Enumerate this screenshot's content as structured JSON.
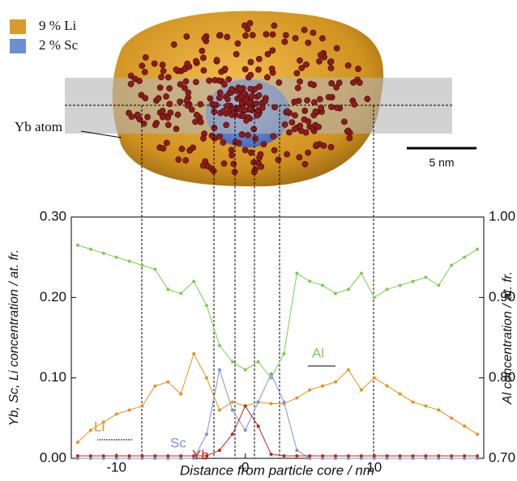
{
  "particle_image": {
    "legend": [
      {
        "label": "9 % Li",
        "color": "#d99b2b"
      },
      {
        "label": "2 % Sc",
        "color": "#6b8fd2"
      }
    ],
    "atom_label": "Yb atom",
    "scale_bar": "5 nm"
  },
  "chart_data": {
    "type": "line",
    "x_label": "Distance from particle core / nm",
    "y_label": "Yb, Sc, Li concentration / at. fr.",
    "y2_label": "Al concentration / at. fr.",
    "x": [
      -13,
      -12,
      -11,
      -10,
      -9,
      -8,
      -7,
      -6,
      -5,
      -4,
      -3,
      -2,
      -1,
      0,
      1,
      2,
      3,
      4,
      5,
      6,
      7,
      8,
      9,
      10,
      11,
      12,
      13,
      14,
      15,
      16,
      17,
      18
    ],
    "xlim": [
      -13.5,
      18.5
    ],
    "xticks": [
      -10,
      0,
      10
    ],
    "ylim": [
      0,
      0.3
    ],
    "yticks": [
      {
        "value": 0,
        "label": "0.00"
      },
      {
        "value": 0.1,
        "label": "0.10"
      },
      {
        "value": 0.2,
        "label": "0.20"
      },
      {
        "value": 0.3,
        "label": "0.30"
      }
    ],
    "y2lim": [
      0.7,
      1.0
    ],
    "y2ticks": [
      {
        "value": 0.7,
        "label": "0.70"
      },
      {
        "value": 0.8,
        "label": "0.80"
      },
      {
        "value": 0.9,
        "label": "0.90"
      },
      {
        "value": 1.0,
        "label": "1.00"
      }
    ],
    "series": [
      {
        "name": "Al",
        "color": "#7ccd4a",
        "axis": "y2",
        "values": [
          0.965,
          0.96,
          0.955,
          0.95,
          0.945,
          0.94,
          0.935,
          0.91,
          0.905,
          0.92,
          0.89,
          0.84,
          0.82,
          0.81,
          0.82,
          0.8,
          0.83,
          0.93,
          0.92,
          0.915,
          0.905,
          0.91,
          0.93,
          0.9,
          0.91,
          0.915,
          0.92,
          0.925,
          0.915,
          0.94,
          0.95,
          0.96
        ]
      },
      {
        "name": "Li",
        "color": "#e8901c",
        "values": [
          0.02,
          0.035,
          0.045,
          0.055,
          0.06,
          0.065,
          0.09,
          0.095,
          0.08,
          0.13,
          0.1,
          0.06,
          0.07,
          0.065,
          0.07,
          0.068,
          0.068,
          0.075,
          0.085,
          0.09,
          0.095,
          0.11,
          0.085,
          0.1,
          0.09,
          0.08,
          0.07,
          0.065,
          0.06,
          0.05,
          0.04,
          0.03
        ]
      },
      {
        "name": "Sc",
        "color": "#7f8fd8",
        "values": [
          0,
          0,
          0,
          0,
          0,
          0,
          0,
          0,
          0,
          0,
          0.03,
          0.11,
          0.06,
          0.035,
          0.07,
          0.105,
          0.07,
          0.01,
          0,
          0,
          0,
          0,
          0,
          0,
          0,
          0,
          0,
          0,
          0,
          0,
          0,
          0
        ]
      },
      {
        "name": "Yb",
        "color": "#b8281e",
        "values": [
          0.003,
          0.003,
          0.003,
          0.003,
          0.003,
          0.003,
          0.003,
          0.003,
          0.003,
          0.003,
          0.003,
          0.01,
          0.03,
          0.065,
          0.04,
          0.005,
          0.003,
          0.003,
          0.003,
          0.003,
          0.003,
          0.003,
          0.003,
          0.003,
          0.003,
          0.003,
          0.003,
          0.003,
          0.003,
          0.003,
          0.003,
          0.003
        ]
      }
    ]
  }
}
